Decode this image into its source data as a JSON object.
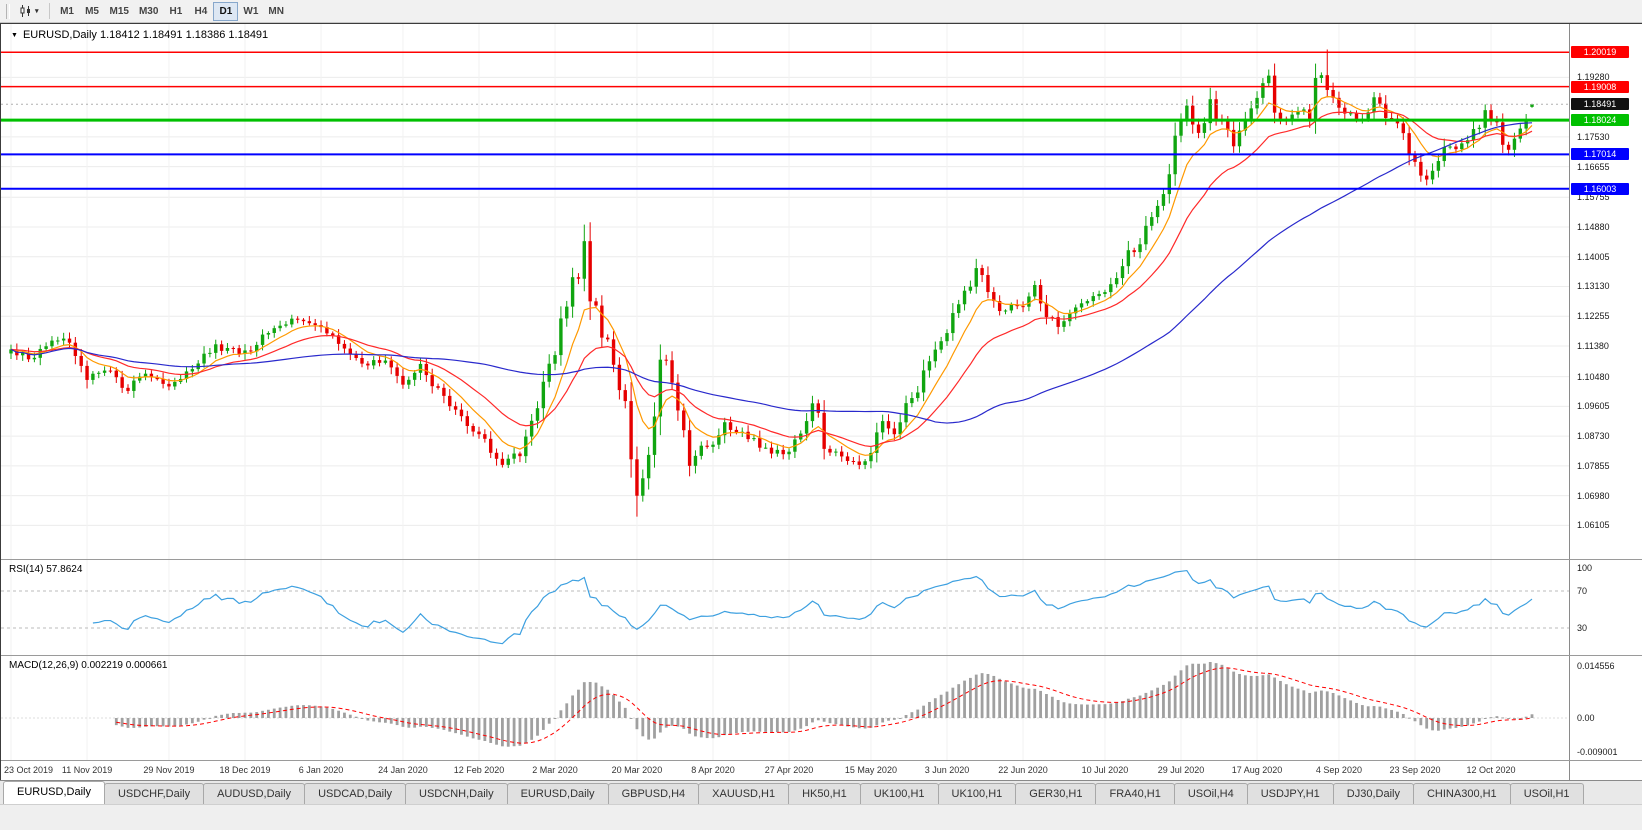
{
  "toolbar": {
    "timeframes": [
      "M1",
      "M5",
      "M15",
      "M30",
      "H1",
      "H4",
      "D1",
      "W1",
      "MN"
    ],
    "active_timeframe": "D1",
    "dropdown_icon": "▾"
  },
  "main_chart": {
    "title": "EURUSD,Daily 1.18412 1.18491 1.18386 1.18491",
    "symbol": "EURUSD",
    "period": "Daily",
    "menu_arrow": "▼",
    "current_price": {
      "label": "1.18491",
      "value": 1.18491,
      "box_color": "#111111"
    },
    "axis_ticks": [
      "1.19280",
      "1.17530",
      "1.16655",
      "1.15755",
      "1.14880",
      "1.14005",
      "1.13130",
      "1.12255",
      "1.11380",
      "1.10480",
      "1.09605",
      "1.08730",
      "1.07855",
      "1.06980",
      "1.06105"
    ],
    "hlines": [
      {
        "label": "1.20019",
        "value": 1.20019,
        "color": "#ff0000",
        "width": 1.6
      },
      {
        "label": "1.19008",
        "value": 1.19008,
        "color": "#ff0000",
        "width": 1.6
      },
      {
        "label": "1.18024",
        "value": 1.18024,
        "color": "#00c000",
        "width": 3
      },
      {
        "label": "1.17014",
        "value": 1.17014,
        "color": "#0000ff",
        "width": 2
      },
      {
        "label": "1.16003",
        "value": 1.16003,
        "color": "#0000ff",
        "width": 2
      }
    ],
    "colors": {
      "up": "#10a510",
      "down": "#e60000",
      "ma_fast": "#ff9900",
      "ma_mid": "#ff2a2a",
      "ma_slow": "#2929cc"
    }
  },
  "rsi": {
    "label": "RSI(14) 57.8624",
    "levels": [
      "100",
      "70",
      "30"
    ],
    "line_color": "#3da0e0"
  },
  "macd": {
    "label": "MACD(12,26,9) 0.002219 0.000661",
    "scale_max": "0.014556",
    "scale_zero": "0.00",
    "scale_min": "-0.009001",
    "hist_color": "#a0a0a0",
    "signal_color": "#ff0000"
  },
  "dates": [
    {
      "label": "23 Oct 2019",
      "i": 0
    },
    {
      "label": "11 Nov 2019",
      "i": 13
    },
    {
      "label": "29 Nov 2019",
      "i": 27
    },
    {
      "label": "18 Dec 2019",
      "i": 40
    },
    {
      "label": "6 Jan 2020",
      "i": 53
    },
    {
      "label": "24 Jan 2020",
      "i": 67
    },
    {
      "label": "12 Feb 2020",
      "i": 80
    },
    {
      "label": "2 Mar 2020",
      "i": 93
    },
    {
      "label": "20 Mar 2020",
      "i": 107
    },
    {
      "label": "8 Apr 2020",
      "i": 120
    },
    {
      "label": "27 Apr 2020",
      "i": 133
    },
    {
      "label": "15 May 2020",
      "i": 147
    },
    {
      "label": "3 Jun 2020",
      "i": 160
    },
    {
      "label": "22 Jun 2020",
      "i": 173
    },
    {
      "label": "10 Jul 2020",
      "i": 187
    },
    {
      "label": "29 Jul 2020",
      "i": 200
    },
    {
      "label": "17 Aug 2020",
      "i": 213
    },
    {
      "label": "4 Sep 2020",
      "i": 227
    },
    {
      "label": "23 Sep 2020",
      "i": 240
    },
    {
      "label": "12 Oct 2020",
      "i": 253
    }
  ],
  "tabs": {
    "active_index": 0,
    "items": [
      "EURUSD,Daily",
      "USDCHF,Daily",
      "AUDUSD,Daily",
      "USDCAD,Daily",
      "USDCNH,Daily",
      "EURUSD,Daily",
      "GBPUSD,H4",
      "XAUUSD,H1",
      "HK50,H1",
      "UK100,H1",
      "UK100,H1",
      "GER30,H1",
      "FRA40,H1",
      "USOil,H4",
      "USDJPY,H1",
      "DJ30,Daily",
      "CHINA300,H1",
      "USOil,H1"
    ]
  },
  "chart_data": {
    "type": "candlestick",
    "symbol": "EURUSD",
    "timeframe": "Daily",
    "num_candles": 261,
    "ylim": [
      1.0505,
      1.2085
    ],
    "last_close": 1.18491,
    "ohlc_last": {
      "open": 1.18412,
      "high": 1.18491,
      "low": 1.18386,
      "close": 1.18491
    },
    "anchor_closes": [
      [
        0,
        1.1128
      ],
      [
        3,
        1.1098
      ],
      [
        6,
        1.1145
      ],
      [
        9,
        1.1165
      ],
      [
        13,
        1.1033
      ],
      [
        16,
        1.107
      ],
      [
        20,
        1.1008
      ],
      [
        23,
        1.106
      ],
      [
        27,
        1.1018
      ],
      [
        31,
        1.108
      ],
      [
        35,
        1.1135
      ],
      [
        40,
        1.1118
      ],
      [
        44,
        1.1175
      ],
      [
        48,
        1.1212
      ],
      [
        53,
        1.1195
      ],
      [
        57,
        1.1125
      ],
      [
        61,
        1.1085
      ],
      [
        64,
        1.11
      ],
      [
        67,
        1.1025
      ],
      [
        70,
        1.109
      ],
      [
        73,
        1.1
      ],
      [
        76,
        1.0945
      ],
      [
        80,
        1.0873
      ],
      [
        84,
        1.0795
      ],
      [
        87,
        1.083
      ],
      [
        89,
        1.0915
      ],
      [
        91,
        1.105
      ],
      [
        93,
        1.1135
      ],
      [
        95,
        1.128
      ],
      [
        97,
        1.136
      ],
      [
        98,
        1.145
      ],
      [
        99,
        1.13
      ],
      [
        101,
        1.118
      ],
      [
        103,
        1.1105
      ],
      [
        104,
        1.102
      ],
      [
        105,
        1.094
      ],
      [
        106,
        1.079
      ],
      [
        107,
        1.069
      ],
      [
        108,
        1.075
      ],
      [
        110,
        1.088
      ],
      [
        111,
        1.107
      ],
      [
        112,
        1.109
      ],
      [
        114,
        1.096
      ],
      [
        116,
        1.08
      ],
      [
        118,
        1.0835
      ],
      [
        120,
        1.086
      ],
      [
        122,
        1.0915
      ],
      [
        124,
        1.0885
      ],
      [
        127,
        1.0865
      ],
      [
        130,
        1.0822
      ],
      [
        133,
        1.083
      ],
      [
        135,
        1.0872
      ],
      [
        137,
        1.0978
      ],
      [
        139,
        1.0845
      ],
      [
        142,
        1.0812
      ],
      [
        145,
        1.0795
      ],
      [
        147,
        1.082
      ],
      [
        149,
        1.0905
      ],
      [
        151,
        1.089
      ],
      [
        153,
        1.096
      ],
      [
        155,
        1.1015
      ],
      [
        157,
        1.11
      ],
      [
        159,
        1.1135
      ],
      [
        161,
        1.123
      ],
      [
        163,
        1.129
      ],
      [
        165,
        1.1373
      ],
      [
        167,
        1.1295
      ],
      [
        169,
        1.124
      ],
      [
        171,
        1.1255
      ],
      [
        173,
        1.1261
      ],
      [
        175,
        1.131
      ],
      [
        177,
        1.124
      ],
      [
        179,
        1.1195
      ],
      [
        181,
        1.123
      ],
      [
        184,
        1.127
      ],
      [
        187,
        1.13
      ],
      [
        189,
        1.1345
      ],
      [
        191,
        1.1413
      ],
      [
        193,
        1.143
      ],
      [
        195,
        1.1526
      ],
      [
        197,
        1.1595
      ],
      [
        198,
        1.1656
      ],
      [
        199,
        1.175
      ],
      [
        200,
        1.179
      ],
      [
        201,
        1.1847
      ],
      [
        202,
        1.1778
      ],
      [
        203,
        1.1763
      ],
      [
        205,
        1.1862
      ],
      [
        207,
        1.1785
      ],
      [
        209,
        1.173
      ],
      [
        211,
        1.179
      ],
      [
        213,
        1.187
      ],
      [
        215,
        1.1933
      ],
      [
        216,
        1.1839
      ],
      [
        218,
        1.1796
      ],
      [
        220,
        1.1834
      ],
      [
        222,
        1.182
      ],
      [
        223,
        1.1903
      ],
      [
        224,
        1.1936
      ],
      [
        225,
        1.1911
      ],
      [
        226,
        1.1854
      ],
      [
        227,
        1.1839
      ],
      [
        229,
        1.1815
      ],
      [
        231,
        1.1802
      ],
      [
        233,
        1.1867
      ],
      [
        235,
        1.1816
      ],
      [
        237,
        1.179
      ],
      [
        238,
        1.1772
      ],
      [
        240,
        1.1661
      ],
      [
        242,
        1.1631
      ],
      [
        243,
        1.1665
      ],
      [
        245,
        1.1721
      ],
      [
        247,
        1.1716
      ],
      [
        249,
        1.1734
      ],
      [
        252,
        1.1826
      ],
      [
        253,
        1.1813
      ],
      [
        255,
        1.1747
      ],
      [
        256,
        1.1709
      ],
      [
        258,
        1.177
      ],
      [
        259,
        1.1823
      ],
      [
        260,
        1.1849
      ]
    ],
    "spikes": [
      {
        "i": 98,
        "high": 1.1495
      },
      {
        "i": 107,
        "low": 1.0636
      },
      {
        "i": 225,
        "high": 1.201
      }
    ],
    "indicators": {
      "moving_averages": [
        {
          "type": "ema",
          "period": 8,
          "color": "#ff9900"
        },
        {
          "type": "ema",
          "period": 20,
          "color": "#ff2a2a"
        },
        {
          "type": "sma",
          "period": 60,
          "color": "#2929cc"
        }
      ],
      "rsi": {
        "period": 14,
        "value": 57.8624
      },
      "macd": {
        "fast": 12,
        "slow": 26,
        "signal": 9,
        "macd_value": 0.002219,
        "signal_value": 0.000661
      }
    }
  }
}
